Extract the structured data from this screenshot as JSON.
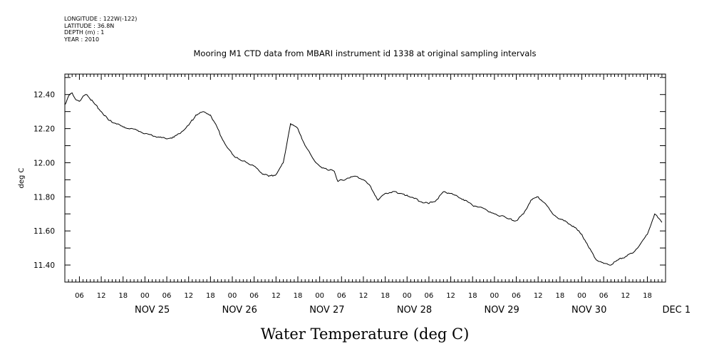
{
  "metadata": [
    "LONGITUDE : 122W(-122)",
    "LATITUDE : 36.8N",
    "DEPTH (m) : 1",
    "YEAR : 2010"
  ],
  "chart_data": {
    "type": "line",
    "title": "Mooring M1 CTD data from MBARI instrument id 1338 at original sampling intervals",
    "xlabel": "Water Temperature (deg C)",
    "ylabel": "deg C",
    "ylim": [
      11.3,
      12.52
    ],
    "yticks": [
      11.4,
      11.6,
      11.8,
      12.0,
      12.2,
      12.4
    ],
    "ytick_labels": [
      "11.40",
      "11.60",
      "11.80",
      "12.00",
      "12.20",
      "12.40"
    ],
    "x_unit": "hours since NOV 25 00:00",
    "xlim": [
      -22,
      143
    ],
    "hour_ticks": [
      "00",
      "06",
      "12",
      "18"
    ],
    "day_labels": [
      "NOV 25",
      "NOV 26",
      "NOV 27",
      "NOV 28",
      "NOV 29",
      "NOV 30",
      "DEC  1"
    ],
    "grid": false,
    "series": [
      {
        "x": [
          -22,
          -21,
          -20,
          -19,
          -18,
          -17,
          -16,
          -14,
          -12,
          -10,
          -8,
          -6,
          -4,
          -2,
          0,
          2,
          4,
          6,
          8,
          10,
          12,
          14,
          16,
          18,
          20,
          21,
          22,
          23,
          24,
          25,
          26,
          27,
          28,
          30,
          32,
          34,
          36,
          38,
          40,
          42,
          44,
          46,
          47,
          48,
          49,
          50,
          51,
          52,
          53,
          54,
          55,
          56,
          58,
          60,
          62,
          64,
          66,
          68,
          69,
          70,
          72,
          74,
          76,
          78,
          80,
          82,
          84,
          86,
          88,
          90,
          92,
          94,
          96,
          97,
          98,
          99,
          100,
          102,
          104,
          106,
          108,
          110,
          112,
          114,
          116,
          118,
          120,
          122,
          124,
          126,
          128,
          130,
          132,
          134,
          136,
          138,
          140,
          142
        ],
        "values": [
          12.34,
          12.39,
          12.41,
          12.37,
          12.36,
          12.39,
          12.4,
          12.35,
          12.3,
          12.25,
          12.23,
          12.21,
          12.2,
          12.19,
          12.17,
          12.16,
          12.15,
          12.14,
          12.15,
          12.18,
          12.22,
          12.28,
          12.3,
          12.28,
          12.2,
          12.15,
          12.11,
          12.08,
          12.05,
          12.03,
          12.02,
          12.01,
          12.0,
          11.98,
          11.94,
          11.92,
          11.93,
          12.0,
          12.23,
          12.2,
          12.1,
          12.03,
          12.0,
          11.98,
          11.97,
          11.96,
          11.96,
          11.95,
          11.89,
          11.9,
          11.9,
          11.91,
          11.92,
          11.9,
          11.86,
          11.78,
          11.82,
          11.83,
          11.83,
          11.82,
          11.81,
          11.79,
          11.77,
          11.76,
          11.78,
          11.83,
          11.82,
          11.8,
          11.78,
          11.75,
          11.74,
          11.72,
          11.7,
          11.69,
          11.69,
          11.68,
          11.67,
          11.66,
          11.7,
          11.78,
          11.8,
          11.76,
          11.7,
          11.67,
          11.65,
          11.62,
          11.58,
          11.5,
          11.43,
          11.41,
          11.4,
          11.43,
          11.45,
          11.47,
          11.52,
          11.58,
          11.7,
          11.65
        ]
      }
    ]
  }
}
